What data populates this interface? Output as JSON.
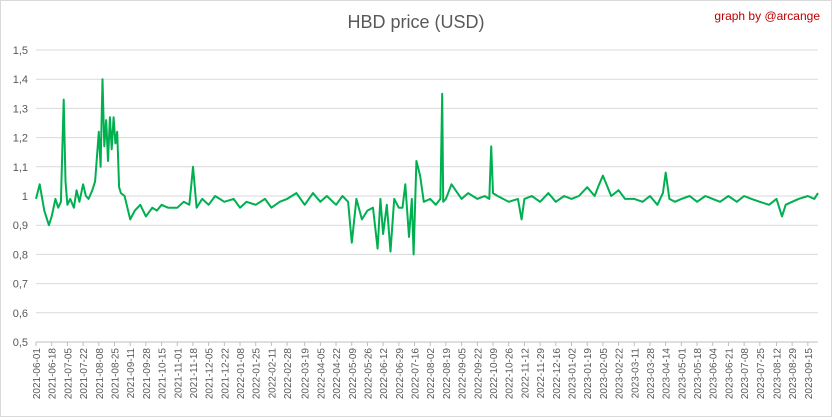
{
  "chart_data": {
    "type": "line",
    "title": "HBD price (USD)",
    "credit": "graph by @arcange",
    "xlabel": "",
    "ylabel": "",
    "ylim": [
      0.5,
      1.5
    ],
    "yticks": [
      "0,5",
      "0,6",
      "0,7",
      "0,8",
      "0,9",
      "1",
      "1,1",
      "1,2",
      "1,3",
      "1,4",
      "1,5"
    ],
    "x_tick_labels": [
      "2021-06-01",
      "2021-06-18",
      "2021-07-05",
      "2021-07-22",
      "2021-08-08",
      "2021-08-25",
      "2021-09-11",
      "2021-09-28",
      "2021-10-15",
      "2021-11-01",
      "2021-11-18",
      "2021-12-05",
      "2021-12-22",
      "2022-01-08",
      "2022-01-25",
      "2022-02-11",
      "2022-02-28",
      "2022-03-19",
      "2022-04-05",
      "2022-04-22",
      "2022-05-09",
      "2022-05-26",
      "2022-06-12",
      "2022-06-29",
      "2022-07-16",
      "2022-08-02",
      "2022-08-19",
      "2022-09-05",
      "2022-09-22",
      "2022-10-09",
      "2022-10-26",
      "2022-11-12",
      "2022-11-29",
      "2022-12-16",
      "2023-01-02",
      "2023-01-19",
      "2023-02-05",
      "2023-02-22",
      "2023-03-11",
      "2023-03-28",
      "2023-04-14",
      "2023-05-01",
      "2023-05-18",
      "2023-06-04",
      "2023-06-21",
      "2023-07-08",
      "2023-07-25",
      "2023-08-12",
      "2023-08-29",
      "2023-09-15"
    ],
    "grid": true,
    "legend": "none",
    "series": [
      {
        "color": "#00b050",
        "x": [
          "2021-06-01",
          "2021-06-05",
          "2021-06-10",
          "2021-06-15",
          "2021-06-18",
          "2021-06-22",
          "2021-06-25",
          "2021-06-28",
          "2021-07-01",
          "2021-07-03",
          "2021-07-05",
          "2021-07-08",
          "2021-07-12",
          "2021-07-15",
          "2021-07-18",
          "2021-07-22",
          "2021-07-25",
          "2021-07-28",
          "2021-08-01",
          "2021-08-04",
          "2021-08-08",
          "2021-08-10",
          "2021-08-12",
          "2021-08-14",
          "2021-08-16",
          "2021-08-18",
          "2021-08-20",
          "2021-08-22",
          "2021-08-24",
          "2021-08-26",
          "2021-08-28",
          "2021-08-30",
          "2021-09-01",
          "2021-09-05",
          "2021-09-11",
          "2021-09-16",
          "2021-09-22",
          "2021-09-28",
          "2021-10-05",
          "2021-10-10",
          "2021-10-15",
          "2021-10-22",
          "2021-11-01",
          "2021-11-08",
          "2021-11-14",
          "2021-11-16",
          "2021-11-18",
          "2021-11-22",
          "2021-11-28",
          "2021-12-05",
          "2021-12-12",
          "2021-12-22",
          "2022-01-01",
          "2022-01-08",
          "2022-01-15",
          "2022-01-25",
          "2022-02-04",
          "2022-02-11",
          "2022-02-20",
          "2022-02-28",
          "2022-03-10",
          "2022-03-19",
          "2022-03-28",
          "2022-04-05",
          "2022-04-12",
          "2022-04-22",
          "2022-04-29",
          "2022-05-05",
          "2022-05-09",
          "2022-05-14",
          "2022-05-20",
          "2022-05-26",
          "2022-06-01",
          "2022-06-06",
          "2022-06-09",
          "2022-06-12",
          "2022-06-16",
          "2022-06-20",
          "2022-06-24",
          "2022-06-29",
          "2022-07-03",
          "2022-07-06",
          "2022-07-10",
          "2022-07-13",
          "2022-07-15",
          "2022-07-16",
          "2022-07-18",
          "2022-07-22",
          "2022-07-26",
          "2022-08-02",
          "2022-08-08",
          "2022-08-13",
          "2022-08-15",
          "2022-08-16",
          "2022-08-19",
          "2022-08-25",
          "2022-09-05",
          "2022-09-12",
          "2022-09-22",
          "2022-09-30",
          "2022-10-05",
          "2022-10-07",
          "2022-10-09",
          "2022-10-14",
          "2022-10-26",
          "2022-11-05",
          "2022-11-09",
          "2022-11-12",
          "2022-11-20",
          "2022-11-29",
          "2022-12-08",
          "2022-12-16",
          "2022-12-25",
          "2023-01-02",
          "2023-01-10",
          "2023-01-19",
          "2023-01-27",
          "2023-02-01",
          "2023-02-05",
          "2023-02-14",
          "2023-02-22",
          "2023-03-01",
          "2023-03-11",
          "2023-03-20",
          "2023-03-28",
          "2023-04-05",
          "2023-04-11",
          "2023-04-14",
          "2023-04-18",
          "2023-04-24",
          "2023-05-01",
          "2023-05-10",
          "2023-05-18",
          "2023-05-27",
          "2023-06-04",
          "2023-06-12",
          "2023-06-21",
          "2023-06-30",
          "2023-07-08",
          "2023-07-16",
          "2023-07-25",
          "2023-08-04",
          "2023-08-12",
          "2023-08-18",
          "2023-08-22",
          "2023-08-29",
          "2023-09-05",
          "2023-09-15",
          "2023-09-22",
          "2023-09-26"
        ],
        "y": [
          0.99,
          1.04,
          0.95,
          0.9,
          0.93,
          0.99,
          0.96,
          0.98,
          1.33,
          1.05,
          0.97,
          0.99,
          0.96,
          1.02,
          0.98,
          1.04,
          1.0,
          0.99,
          1.02,
          1.05,
          1.22,
          1.1,
          1.4,
          1.17,
          1.26,
          1.12,
          1.27,
          1.16,
          1.27,
          1.18,
          1.22,
          1.03,
          1.01,
          1.0,
          0.92,
          0.95,
          0.97,
          0.93,
          0.96,
          0.95,
          0.97,
          0.96,
          0.96,
          0.98,
          0.97,
          1.03,
          1.1,
          0.96,
          0.99,
          0.97,
          1.0,
          0.98,
          0.99,
          0.96,
          0.98,
          0.97,
          0.99,
          0.96,
          0.98,
          0.99,
          1.01,
          0.97,
          1.01,
          0.98,
          1.0,
          0.97,
          1.0,
          0.98,
          0.84,
          0.99,
          0.92,
          0.95,
          0.96,
          0.82,
          0.99,
          0.87,
          0.97,
          0.81,
          0.99,
          0.96,
          0.96,
          1.04,
          0.86,
          0.99,
          0.8,
          0.9,
          1.12,
          1.07,
          0.98,
          0.99,
          0.97,
          0.99,
          1.35,
          0.98,
          0.99,
          1.04,
          0.99,
          1.01,
          0.99,
          1.0,
          0.99,
          1.17,
          1.01,
          1.0,
          0.98,
          0.99,
          0.92,
          0.99,
          1.0,
          0.98,
          1.01,
          0.98,
          1.0,
          0.99,
          1.0,
          1.03,
          1.0,
          1.04,
          1.07,
          1.0,
          1.02,
          0.99,
          0.99,
          0.98,
          1.0,
          0.97,
          1.01,
          1.08,
          0.99,
          0.98,
          0.99,
          1.0,
          0.98,
          1.0,
          0.99,
          0.98,
          1.0,
          0.98,
          1.0,
          0.99,
          0.98,
          0.97,
          0.99,
          0.93,
          0.97,
          0.98,
          0.99,
          1.0,
          0.99,
          1.01
        ]
      }
    ]
  }
}
